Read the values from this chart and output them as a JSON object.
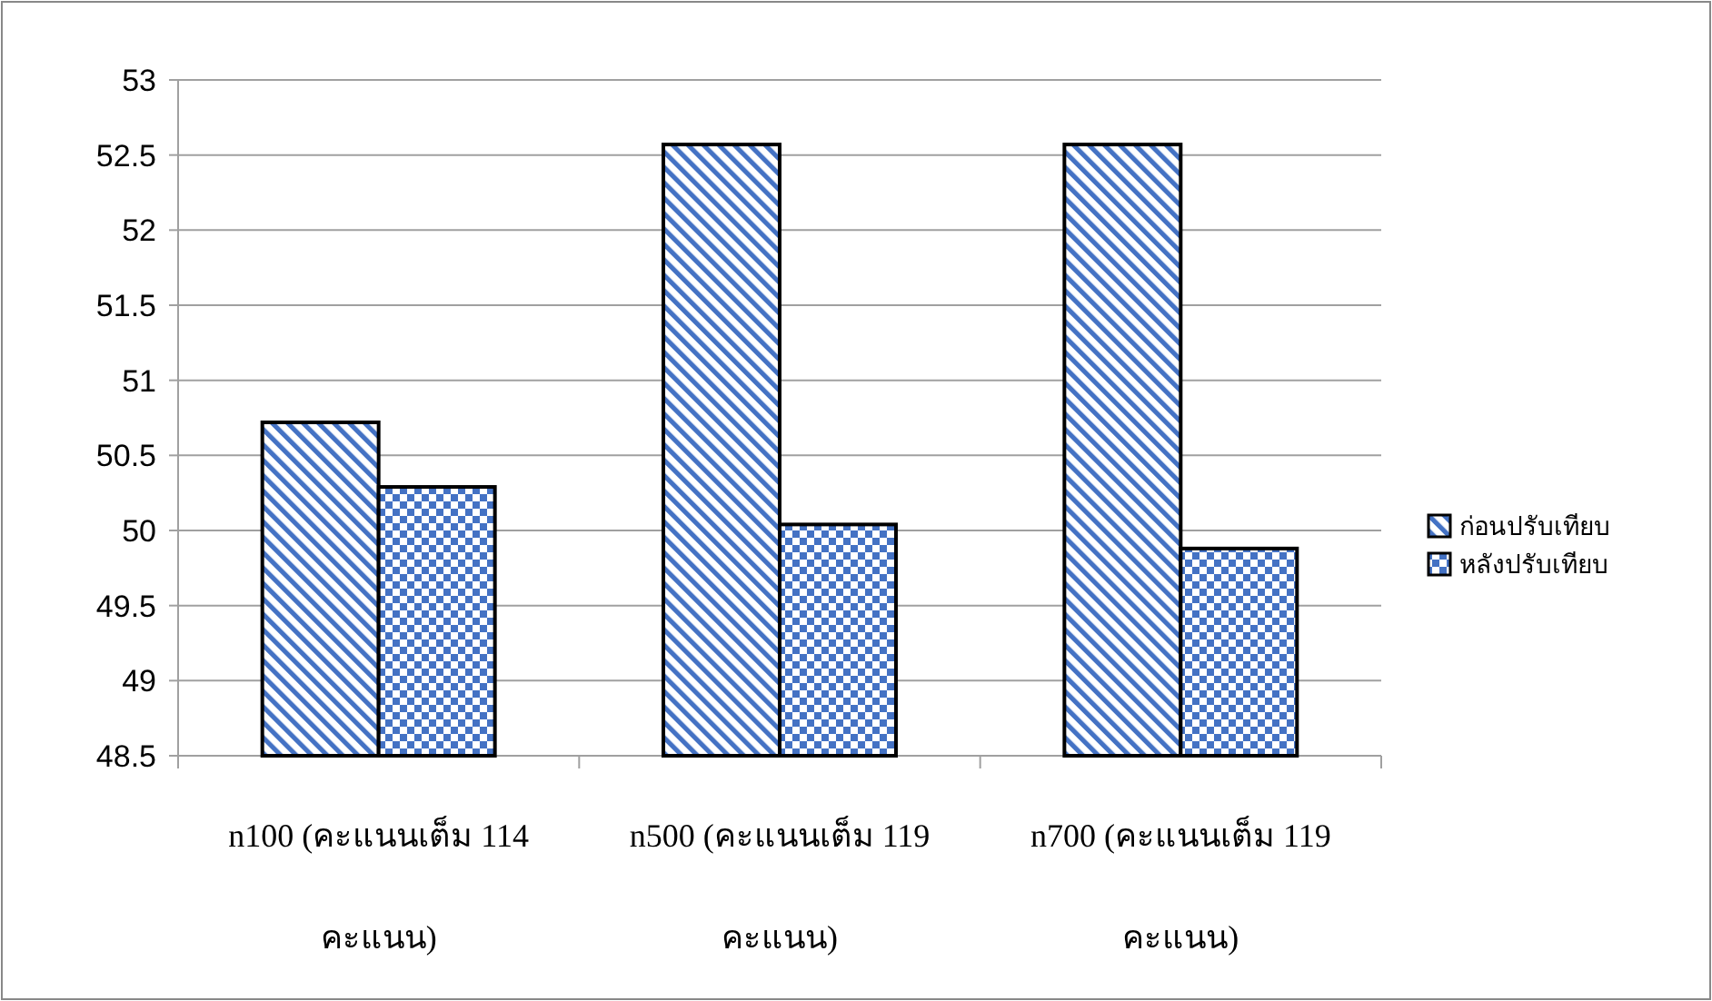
{
  "chart_data": {
    "type": "bar",
    "categories": [
      "n100 (คะแนนเต็ม 114 คะแนน)",
      "n500 (คะแนนเต็ม 119 คะแนน)",
      "n700 (คะแนนเต็ม 119 คะแนน)"
    ],
    "series": [
      {
        "name": "ก่อนปรับเทียบ",
        "color": "#4472c4",
        "values": [
          50.72,
          52.57,
          52.57
        ]
      },
      {
        "name": "หลังปรับเทียบ",
        "color": "#4472c4",
        "values": [
          50.29,
          50.04,
          49.88
        ]
      }
    ],
    "ylim": [
      48.5,
      53
    ],
    "yticks": [
      48.5,
      49,
      49.5,
      50,
      50.5,
      51,
      51.5,
      52,
      52.5,
      53
    ],
    "grid": "y",
    "legend": "right"
  }
}
